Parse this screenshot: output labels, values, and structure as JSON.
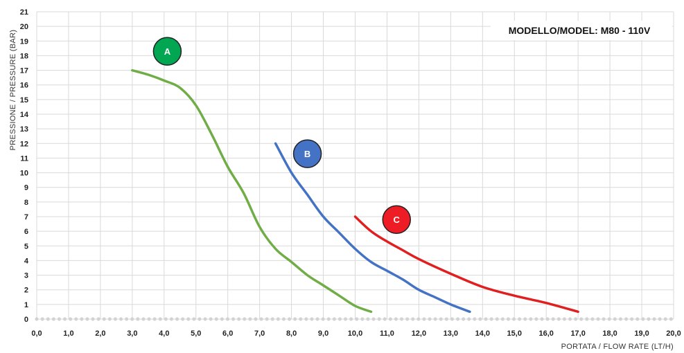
{
  "chart_data": {
    "type": "line",
    "title": "MODELLO/MODEL: M80 - 110V",
    "xlabel": "PORTATA / FLOW RATE (LT/H)",
    "ylabel": "PRESSIONE / PRESSURE (BAR)",
    "xlim": [
      0,
      20
    ],
    "ylim": [
      0,
      21
    ],
    "x_ticks": [
      "0,0",
      "1,0",
      "2,0",
      "3,0",
      "4,0",
      "5,0",
      "6,0",
      "7,0",
      "8,0",
      "9,0",
      "10,0",
      "11,0",
      "12,0",
      "13,0",
      "14,0",
      "15,0",
      "16,0",
      "17,0",
      "18,0",
      "19,0",
      "20,0"
    ],
    "y_ticks": [
      "0",
      "1",
      "2",
      "3",
      "4",
      "5",
      "6",
      "7",
      "8",
      "9",
      "10",
      "11",
      "12",
      "13",
      "14",
      "15",
      "16",
      "17",
      "18",
      "19",
      "20",
      "21"
    ],
    "grid": true,
    "series": [
      {
        "name": "A",
        "color": "#70ad47",
        "points": [
          [
            3.0,
            17.0
          ],
          [
            3.5,
            16.7
          ],
          [
            4.0,
            16.3
          ],
          [
            4.5,
            15.8
          ],
          [
            5.0,
            14.6
          ],
          [
            5.5,
            12.6
          ],
          [
            6.0,
            10.4
          ],
          [
            6.5,
            8.6
          ],
          [
            7.0,
            6.3
          ],
          [
            7.5,
            4.8
          ],
          [
            8.0,
            3.9
          ],
          [
            8.5,
            3.0
          ],
          [
            9.0,
            2.3
          ],
          [
            9.5,
            1.6
          ],
          [
            10.0,
            0.9
          ],
          [
            10.5,
            0.5
          ]
        ]
      },
      {
        "name": "B",
        "color": "#4472c4",
        "points": [
          [
            7.5,
            12.0
          ],
          [
            8.0,
            10.0
          ],
          [
            8.5,
            8.5
          ],
          [
            9.0,
            7.0
          ],
          [
            9.5,
            5.9
          ],
          [
            10.0,
            4.8
          ],
          [
            10.5,
            3.9
          ],
          [
            11.0,
            3.3
          ],
          [
            11.5,
            2.7
          ],
          [
            12.0,
            2.0
          ],
          [
            12.5,
            1.5
          ],
          [
            13.0,
            1.0
          ],
          [
            13.6,
            0.5
          ]
        ]
      },
      {
        "name": "C",
        "color": "#e02020",
        "points": [
          [
            10.0,
            7.0
          ],
          [
            10.5,
            6.0
          ],
          [
            11.0,
            5.3
          ],
          [
            11.5,
            4.7
          ],
          [
            12.0,
            4.1
          ],
          [
            13.0,
            3.1
          ],
          [
            14.0,
            2.2
          ],
          [
            15.0,
            1.6
          ],
          [
            16.0,
            1.1
          ],
          [
            17.0,
            0.5
          ]
        ]
      }
    ],
    "markers": [
      {
        "label": "A",
        "x": 4.1,
        "y": 18.3,
        "color": "#00a651"
      },
      {
        "label": "B",
        "x": 8.5,
        "y": 11.3,
        "color": "#4472c4"
      },
      {
        "label": "C",
        "x": 11.3,
        "y": 6.8,
        "color": "#ee1c24"
      }
    ]
  }
}
